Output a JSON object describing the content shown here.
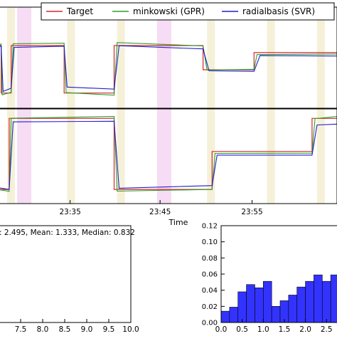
{
  "legend": [
    {
      "label": "Target",
      "color": "#d62728"
    },
    {
      "label": "minkowski (GPR)",
      "color": "#2ca02c"
    },
    {
      "label": "radialbasis (SVR)",
      "color": "#1f1fcc"
    }
  ],
  "time_axis": {
    "label": "Time",
    "ticks": [
      "23:35",
      "23:45",
      "23:55"
    ]
  },
  "stats_text": ": 2.495, Mean: 1.333, Median: 0.832",
  "left_x_ticks": [
    "7.5",
    "8.0",
    "8.5",
    "9.0",
    "9.5",
    "10.0"
  ],
  "colors": {
    "target": "#d62728",
    "gpr": "#2ca02c",
    "svr": "#1f1fcc",
    "band_yellow": "#f5f0d8",
    "band_pink": "#f6dcf4",
    "hist_bar": "#3333ff"
  },
  "bands_time": [
    {
      "t": 1,
      "color": "yellow"
    },
    {
      "t": 2,
      "color": "pink"
    },
    {
      "t": 7,
      "color": "yellow"
    },
    {
      "t": 12,
      "color": "yellow"
    },
    {
      "t": 16,
      "color": "pink"
    },
    {
      "t": 21,
      "color": "yellow"
    },
    {
      "t": 27,
      "color": "yellow"
    },
    {
      "t": 32,
      "color": "yellow"
    }
  ],
  "chart_data": [
    {
      "type": "line",
      "panel": "top",
      "xlabel": "",
      "x_ticks": [
        "23:35",
        "23:45",
        "23:55"
      ],
      "series": [
        {
          "name": "Target",
          "x": [
            0,
            0.4,
            0.4,
            1.4,
            1.4,
            6.7,
            6.7,
            11.7,
            11.7,
            20.6,
            20.6,
            25.7,
            25.7,
            34
          ],
          "y": [
            0.62,
            0.62,
            0.15,
            0.15,
            0.62,
            0.62,
            0.15,
            0.15,
            0.62,
            0.62,
            0.38,
            0.38,
            0.55,
            0.55
          ]
        },
        {
          "name": "minkowski (GPR)",
          "x": [
            0,
            0.4,
            0.5,
            1.4,
            1.6,
            6.7,
            6.9,
            11.7,
            12,
            20.6,
            21,
            25.7,
            26,
            34
          ],
          "y": [
            0.62,
            0.62,
            0.14,
            0.14,
            0.63,
            0.63,
            0.14,
            0.14,
            0.63,
            0.63,
            0.38,
            0.38,
            0.55,
            0.55
          ]
        },
        {
          "name": "radialbasis (SVR)",
          "x": [
            0,
            0.4,
            0.6,
            1.4,
            1.7,
            6.7,
            7,
            11.7,
            12.2,
            20.6,
            21.2,
            25.7,
            26.3,
            34
          ],
          "y": [
            0.6,
            0.6,
            0.18,
            0.18,
            0.6,
            0.6,
            0.2,
            0.2,
            0.6,
            0.6,
            0.36,
            0.36,
            0.53,
            0.53
          ]
        }
      ]
    },
    {
      "type": "line",
      "panel": "middle",
      "xlabel": "Time",
      "x_ticks": [
        "23:35",
        "23:45",
        "23:55"
      ],
      "series": [
        {
          "name": "Target",
          "x": [
            0,
            1.2,
            1.2,
            11.7,
            11.7,
            21.5,
            21.5,
            31.5,
            31.5,
            34
          ],
          "y": [
            0.15,
            0.15,
            0.9,
            0.9,
            0.15,
            0.15,
            0.55,
            0.55,
            0.9,
            0.9
          ]
        },
        {
          "name": "minkowski (GPR)",
          "x": [
            0,
            1.2,
            1.4,
            11.7,
            12,
            21.5,
            21.8,
            31.5,
            31.8,
            34
          ],
          "y": [
            0.15,
            0.15,
            0.9,
            0.9,
            0.14,
            0.14,
            0.55,
            0.55,
            0.9,
            0.9
          ]
        },
        {
          "name": "radialbasis (SVR)",
          "x": [
            0,
            1.2,
            1.6,
            11.7,
            12.2,
            21.5,
            22,
            31.5,
            32,
            34
          ],
          "y": [
            0.17,
            0.17,
            0.85,
            0.85,
            0.18,
            0.18,
            0.53,
            0.53,
            0.82,
            0.82
          ]
        }
      ]
    },
    {
      "type": "scatter",
      "panel": "bottom-left",
      "x_ticks": [
        "7.5",
        "8.0",
        "8.5",
        "9.0",
        "9.5",
        "10.0"
      ],
      "xlim": [
        7.0,
        10.0
      ],
      "series": []
    },
    {
      "type": "bar",
      "panel": "bottom-right",
      "xlim": [
        0.0,
        2.8
      ],
      "ylim": [
        0.0,
        0.12
      ],
      "x_ticks": [
        "0.0",
        "0.5",
        "1.0",
        "1.5",
        "2.0",
        "2.5"
      ],
      "y_ticks": [
        "0.00",
        "0.02",
        "0.04",
        "0.06",
        "0.08",
        "0.10",
        "0.12"
      ],
      "bin_width": 0.2,
      "bin_starts": [
        0.0,
        0.2,
        0.4,
        0.6,
        0.8,
        1.0,
        1.2,
        1.4,
        1.6,
        1.8,
        2.0,
        2.2,
        2.4,
        2.6
      ],
      "values": [
        0.014,
        0.019,
        0.038,
        0.047,
        0.043,
        0.051,
        0.02,
        0.027,
        0.034,
        0.044,
        0.051,
        0.059,
        0.051,
        0.059
      ]
    }
  ]
}
